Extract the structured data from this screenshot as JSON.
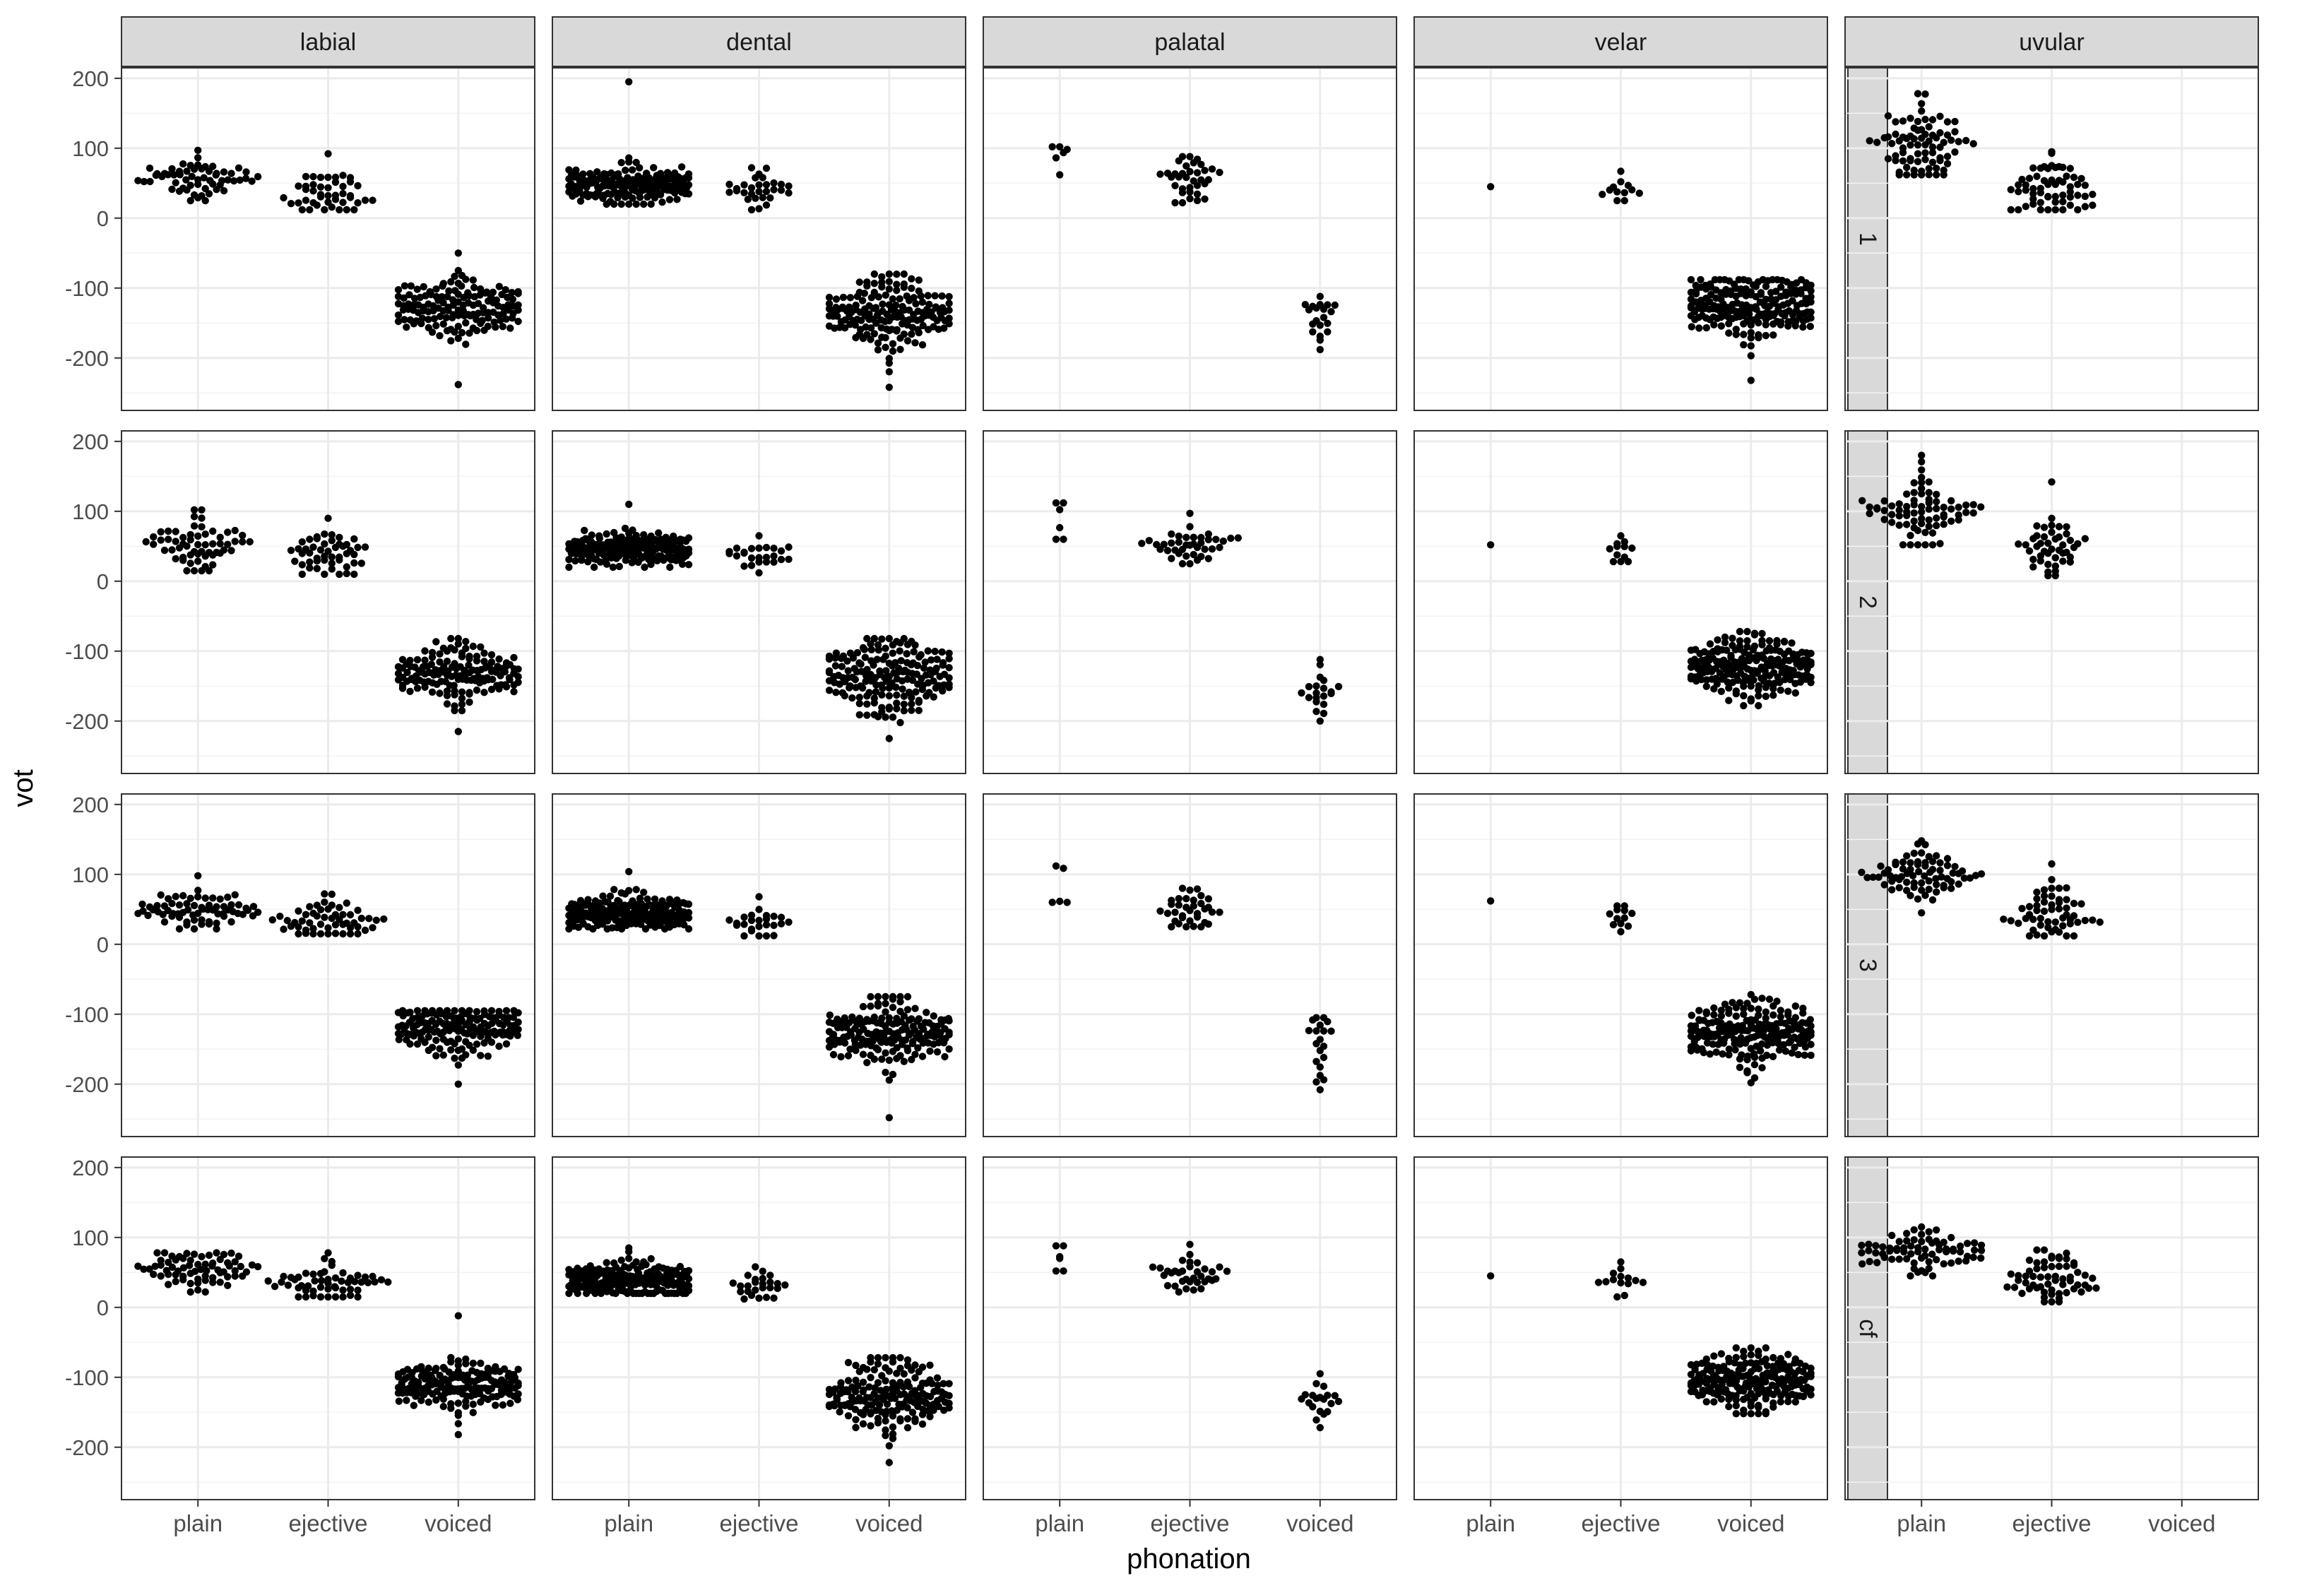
{
  "chart_data": {
    "type": "scatter",
    "subtype": "faceted beeswarm (dot strip) plot",
    "xlabel": "phonation",
    "ylabel": "vot",
    "ylim": [
      -275,
      215
    ],
    "yticks": [
      -200,
      -100,
      0,
      100,
      200
    ],
    "x_categories": [
      "plain",
      "ejective",
      "voiced"
    ],
    "facet_columns": [
      "labial",
      "dental",
      "palatal",
      "velar",
      "uvular"
    ],
    "facet_rows": [
      "1",
      "2",
      "3",
      "cf"
    ],
    "grid": true,
    "theme": "bw",
    "point_color": "#000000",
    "strip_color": "#d9d9d9",
    "gridline_color": "#ebebeb",
    "groups_note": "Each group lists: row, column, phonation, n (approx. point count), center, spread, min, max (vot units, estimated from the axis).",
    "groups": [
      {
        "row": "1",
        "col": "labial",
        "phon": "plain",
        "n": 60,
        "center": 58,
        "spread": 14,
        "min": 25,
        "max": 97
      },
      {
        "row": "1",
        "col": "labial",
        "phon": "ejective",
        "n": 45,
        "center": 35,
        "spread": 16,
        "min": 12,
        "max": 92
      },
      {
        "row": "1",
        "col": "labial",
        "phon": "voiced",
        "n": 150,
        "center": -130,
        "spread": 22,
        "min": -238,
        "max": -50
      },
      {
        "row": "1",
        "col": "dental",
        "phon": "plain",
        "n": 180,
        "center": 48,
        "spread": 14,
        "min": 20,
        "max": 195
      },
      {
        "row": "1",
        "col": "dental",
        "phon": "ejective",
        "n": 30,
        "center": 38,
        "spread": 12,
        "min": 12,
        "max": 72
      },
      {
        "row": "1",
        "col": "dental",
        "phon": "voiced",
        "n": 170,
        "center": -135,
        "spread": 25,
        "min": -242,
        "max": -80
      },
      {
        "row": "1",
        "col": "palatal",
        "phon": "plain",
        "n": 6,
        "center": 85,
        "spread": 14,
        "min": 62,
        "max": 102
      },
      {
        "row": "1",
        "col": "palatal",
        "phon": "ejective",
        "n": 35,
        "center": 55,
        "spread": 15,
        "min": 22,
        "max": 88
      },
      {
        "row": "1",
        "col": "palatal",
        "phon": "voiced",
        "n": 20,
        "center": -145,
        "spread": 20,
        "min": -188,
        "max": -112
      },
      {
        "row": "1",
        "col": "velar",
        "phon": "plain",
        "n": 1,
        "center": 45,
        "spread": 0,
        "min": 45,
        "max": 45
      },
      {
        "row": "1",
        "col": "velar",
        "phon": "ejective",
        "n": 12,
        "center": 40,
        "spread": 10,
        "min": 25,
        "max": 67
      },
      {
        "row": "1",
        "col": "velar",
        "phon": "voiced",
        "n": 200,
        "center": -128,
        "spread": 26,
        "min": -232,
        "max": -88
      },
      {
        "row": "1",
        "col": "uvular",
        "phon": "plain",
        "n": 80,
        "center": 110,
        "spread": 28,
        "min": 62,
        "max": 178
      },
      {
        "row": "1",
        "col": "uvular",
        "phon": "ejective",
        "n": 60,
        "center": 45,
        "spread": 20,
        "min": 12,
        "max": 95
      },
      {
        "row": "2",
        "col": "labial",
        "phon": "plain",
        "n": 60,
        "center": 52,
        "spread": 17,
        "min": 15,
        "max": 102
      },
      {
        "row": "2",
        "col": "labial",
        "phon": "ejective",
        "n": 50,
        "center": 38,
        "spread": 17,
        "min": 10,
        "max": 90
      },
      {
        "row": "2",
        "col": "labial",
        "phon": "voiced",
        "n": 150,
        "center": -135,
        "spread": 24,
        "min": -215,
        "max": -82
      },
      {
        "row": "2",
        "col": "dental",
        "phon": "plain",
        "n": 200,
        "center": 47,
        "spread": 12,
        "min": 20,
        "max": 110
      },
      {
        "row": "2",
        "col": "dental",
        "phon": "ejective",
        "n": 25,
        "center": 35,
        "spread": 12,
        "min": 12,
        "max": 65
      },
      {
        "row": "2",
        "col": "dental",
        "phon": "voiced",
        "n": 180,
        "center": -140,
        "spread": 28,
        "min": -225,
        "max": -82
      },
      {
        "row": "2",
        "col": "palatal",
        "phon": "plain",
        "n": 6,
        "center": 80,
        "spread": 16,
        "min": 60,
        "max": 112
      },
      {
        "row": "2",
        "col": "palatal",
        "phon": "ejective",
        "n": 40,
        "center": 48,
        "spread": 14,
        "min": 25,
        "max": 97
      },
      {
        "row": "2",
        "col": "palatal",
        "phon": "voiced",
        "n": 20,
        "center": -155,
        "spread": 22,
        "min": -200,
        "max": -112
      },
      {
        "row": "2",
        "col": "velar",
        "phon": "plain",
        "n": 1,
        "center": 52,
        "spread": 0,
        "min": 52,
        "max": 52
      },
      {
        "row": "2",
        "col": "velar",
        "phon": "ejective",
        "n": 12,
        "center": 45,
        "spread": 10,
        "min": 28,
        "max": 65
      },
      {
        "row": "2",
        "col": "velar",
        "phon": "voiced",
        "n": 200,
        "center": -122,
        "spread": 22,
        "min": -178,
        "max": -72
      },
      {
        "row": "2",
        "col": "uvular",
        "phon": "plain",
        "n": 75,
        "center": 100,
        "spread": 27,
        "min": 52,
        "max": 180
      },
      {
        "row": "2",
        "col": "uvular",
        "phon": "ejective",
        "n": 45,
        "center": 45,
        "spread": 20,
        "min": 8,
        "max": 142
      },
      {
        "row": "3",
        "col": "labial",
        "phon": "plain",
        "n": 70,
        "center": 50,
        "spread": 13,
        "min": 22,
        "max": 98
      },
      {
        "row": "3",
        "col": "labial",
        "phon": "ejective",
        "n": 55,
        "center": 35,
        "spread": 14,
        "min": 15,
        "max": 72
      },
      {
        "row": "3",
        "col": "labial",
        "phon": "voiced",
        "n": 160,
        "center": -120,
        "spread": 18,
        "min": -200,
        "max": -95
      },
      {
        "row": "3",
        "col": "dental",
        "phon": "plain",
        "n": 200,
        "center": 43,
        "spread": 13,
        "min": 22,
        "max": 104
      },
      {
        "row": "3",
        "col": "dental",
        "phon": "ejective",
        "n": 25,
        "center": 35,
        "spread": 12,
        "min": 12,
        "max": 68
      },
      {
        "row": "3",
        "col": "dental",
        "phon": "voiced",
        "n": 180,
        "center": -130,
        "spread": 25,
        "min": -248,
        "max": -75
      },
      {
        "row": "3",
        "col": "palatal",
        "phon": "plain",
        "n": 5,
        "center": 75,
        "spread": 18,
        "min": 60,
        "max": 112
      },
      {
        "row": "3",
        "col": "palatal",
        "phon": "ejective",
        "n": 35,
        "center": 45,
        "spread": 13,
        "min": 25,
        "max": 80
      },
      {
        "row": "3",
        "col": "palatal",
        "phon": "voiced",
        "n": 20,
        "center": -145,
        "spread": 25,
        "min": -208,
        "max": -105
      },
      {
        "row": "3",
        "col": "velar",
        "phon": "plain",
        "n": 1,
        "center": 62,
        "spread": 0,
        "min": 62,
        "max": 62
      },
      {
        "row": "3",
        "col": "velar",
        "phon": "ejective",
        "n": 12,
        "center": 38,
        "spread": 10,
        "min": 18,
        "max": 55
      },
      {
        "row": "3",
        "col": "velar",
        "phon": "voiced",
        "n": 200,
        "center": -125,
        "spread": 22,
        "min": -198,
        "max": -72
      },
      {
        "row": "3",
        "col": "uvular",
        "phon": "plain",
        "n": 75,
        "center": 95,
        "spread": 17,
        "min": 45,
        "max": 148
      },
      {
        "row": "3",
        "col": "uvular",
        "phon": "ejective",
        "n": 55,
        "center": 40,
        "spread": 20,
        "min": 12,
        "max": 115
      },
      {
        "row": "cf",
        "col": "labial",
        "phon": "plain",
        "n": 70,
        "center": 52,
        "spread": 15,
        "min": 22,
        "max": 78
      },
      {
        "row": "cf",
        "col": "labial",
        "phon": "ejective",
        "n": 55,
        "center": 38,
        "spread": 15,
        "min": 15,
        "max": 78
      },
      {
        "row": "cf",
        "col": "labial",
        "phon": "voiced",
        "n": 170,
        "center": -110,
        "spread": 17,
        "min": -182,
        "max": -12
      },
      {
        "row": "cf",
        "col": "dental",
        "phon": "plain",
        "n": 200,
        "center": 40,
        "spread": 14,
        "min": 20,
        "max": 85
      },
      {
        "row": "cf",
        "col": "dental",
        "phon": "ejective",
        "n": 25,
        "center": 33,
        "spread": 12,
        "min": 12,
        "max": 58
      },
      {
        "row": "cf",
        "col": "dental",
        "phon": "voiced",
        "n": 180,
        "center": -125,
        "spread": 27,
        "min": -222,
        "max": -72
      },
      {
        "row": "cf",
        "col": "palatal",
        "phon": "plain",
        "n": 6,
        "center": 70,
        "spread": 14,
        "min": 52,
        "max": 88
      },
      {
        "row": "cf",
        "col": "palatal",
        "phon": "ejective",
        "n": 35,
        "center": 45,
        "spread": 14,
        "min": 22,
        "max": 90
      },
      {
        "row": "cf",
        "col": "palatal",
        "phon": "voiced",
        "n": 20,
        "center": -135,
        "spread": 17,
        "min": -172,
        "max": -95
      },
      {
        "row": "cf",
        "col": "velar",
        "phon": "plain",
        "n": 1,
        "center": 45,
        "spread": 0,
        "min": 45,
        "max": 45
      },
      {
        "row": "cf",
        "col": "velar",
        "phon": "ejective",
        "n": 14,
        "center": 38,
        "spread": 13,
        "min": 15,
        "max": 65
      },
      {
        "row": "cf",
        "col": "velar",
        "phon": "voiced",
        "n": 200,
        "center": -105,
        "spread": 20,
        "min": -152,
        "max": -58
      },
      {
        "row": "cf",
        "col": "uvular",
        "phon": "plain",
        "n": 75,
        "center": 80,
        "spread": 15,
        "min": 45,
        "max": 115
      },
      {
        "row": "cf",
        "col": "uvular",
        "phon": "ejective",
        "n": 60,
        "center": 40,
        "spread": 18,
        "min": 8,
        "max": 82
      }
    ]
  }
}
